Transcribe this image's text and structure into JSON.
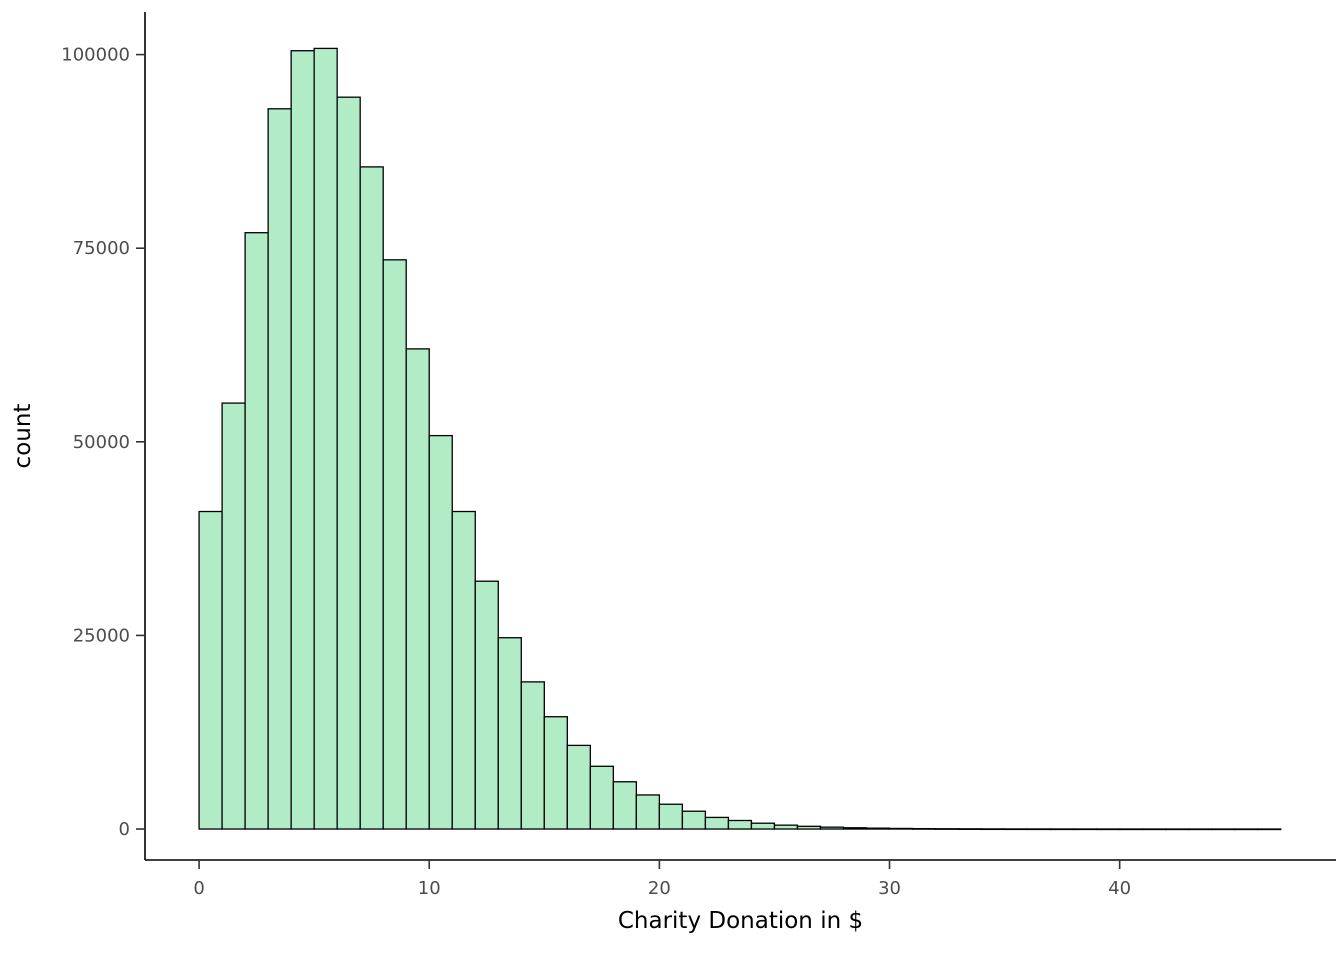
{
  "chart_data": {
    "type": "bar",
    "subtype": "histogram",
    "title": "",
    "xlabel": "Charity Donation in $",
    "ylabel": "count",
    "bin_start": 0,
    "bin_width": 1,
    "values": [
      41000,
      55000,
      77000,
      93000,
      100500,
      100800,
      94500,
      85500,
      73500,
      62000,
      50800,
      41000,
      32000,
      24700,
      19000,
      14500,
      10800,
      8100,
      6100,
      4400,
      3200,
      2300,
      1500,
      1100,
      750,
      500,
      350,
      240,
      160,
      110,
      75,
      50,
      35,
      25,
      16,
      11,
      8,
      5,
      4,
      3,
      2,
      2,
      1,
      1,
      1,
      1,
      1
    ],
    "x_ticks": [
      0,
      10,
      20,
      30,
      40
    ],
    "y_ticks": [
      0,
      25000,
      50000,
      75000,
      100000
    ],
    "xlim": [
      -2.35,
      49.4
    ],
    "ylim": [
      -4000,
      105500
    ],
    "grid": false,
    "legend": false,
    "bar_fill": "#b1ecc7",
    "bar_stroke": "#000000",
    "axis_color": "#000000",
    "tick_color": "#333333",
    "background": "#ffffff"
  }
}
